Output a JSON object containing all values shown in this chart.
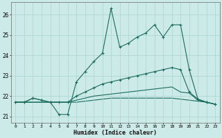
{
  "xlabel": "Humidex (Indice chaleur)",
  "bg_color": "#cceae7",
  "grid_color": "#aad4d0",
  "line_color": "#1a6b5a",
  "xlim": [
    -0.5,
    23.5
  ],
  "ylim": [
    20.7,
    26.6
  ],
  "yticks": [
    21,
    22,
    23,
    24,
    25,
    26
  ],
  "xticks": [
    0,
    1,
    2,
    3,
    4,
    5,
    6,
    7,
    8,
    9,
    10,
    11,
    12,
    13,
    14,
    15,
    16,
    17,
    18,
    19,
    20,
    21,
    22,
    23
  ],
  "line1_x": [
    0,
    1,
    2,
    3,
    4,
    5,
    6,
    7,
    8,
    9,
    10,
    11,
    12,
    13,
    14,
    15,
    16,
    17,
    18,
    19,
    20,
    21,
    22,
    23
  ],
  "line1_y": [
    21.7,
    21.7,
    21.9,
    21.8,
    21.7,
    21.1,
    21.1,
    22.7,
    23.2,
    23.7,
    24.1,
    26.3,
    24.4,
    24.6,
    24.9,
    25.1,
    25.5,
    24.9,
    25.5,
    25.5,
    23.3,
    21.85,
    21.7,
    21.6
  ],
  "line2_x": [
    0,
    1,
    2,
    3,
    4,
    5,
    6,
    7,
    8,
    9,
    10,
    11,
    12,
    13,
    14,
    15,
    16,
    17,
    18,
    19,
    20,
    21,
    22,
    23
  ],
  "line2_y": [
    21.7,
    21.7,
    21.9,
    21.8,
    21.7,
    21.7,
    21.7,
    22.0,
    22.2,
    22.4,
    22.6,
    22.7,
    22.8,
    22.9,
    23.0,
    23.1,
    23.2,
    23.3,
    23.4,
    23.3,
    22.2,
    21.85,
    21.7,
    21.6
  ],
  "line3_x": [
    0,
    1,
    2,
    3,
    4,
    5,
    6,
    7,
    8,
    9,
    10,
    11,
    12,
    13,
    14,
    15,
    16,
    17,
    18,
    19,
    20,
    21,
    22,
    23
  ],
  "line3_y": [
    21.7,
    21.7,
    21.7,
    21.7,
    21.7,
    21.7,
    21.7,
    21.8,
    21.9,
    22.0,
    22.05,
    22.1,
    22.15,
    22.2,
    22.25,
    22.3,
    22.35,
    22.4,
    22.45,
    22.2,
    22.15,
    21.8,
    21.7,
    21.6
  ],
  "line4_x": [
    0,
    1,
    2,
    3,
    4,
    5,
    6,
    7,
    8,
    9,
    10,
    11,
    12,
    13,
    14,
    15,
    16,
    17,
    18,
    19,
    20,
    21,
    22,
    23
  ],
  "line4_y": [
    21.7,
    21.7,
    21.7,
    21.7,
    21.7,
    21.7,
    21.7,
    21.7,
    21.75,
    21.8,
    21.85,
    21.9,
    21.9,
    21.9,
    21.9,
    21.9,
    21.9,
    21.9,
    21.9,
    21.85,
    21.8,
    21.75,
    21.7,
    21.6
  ]
}
